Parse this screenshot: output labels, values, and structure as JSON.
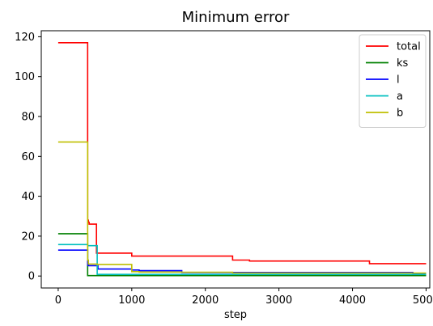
{
  "chart_data": {
    "type": "line",
    "title": "Minimum error",
    "xlabel": "step",
    "ylabel": "",
    "xlim": [
      -230,
      5050
    ],
    "ylim": [
      -6,
      123
    ],
    "xticks": [
      0,
      1000,
      2000,
      3000,
      4000,
      5000
    ],
    "yticks": [
      0,
      20,
      40,
      60,
      80,
      100,
      120
    ],
    "grid": false,
    "legend_position": "top-right",
    "step_style": "post",
    "series": [
      {
        "name": "total",
        "color": "#ff0000",
        "x": [
          0,
          400,
          410,
          420,
          430,
          520,
          1000,
          2370,
          2600,
          4230,
          5000
        ],
        "y": [
          117,
          28,
          27,
          26,
          26,
          11.5,
          10,
          8,
          7.5,
          6.2,
          6.2
        ]
      },
      {
        "name": "ks",
        "color": "#008000",
        "x": [
          0,
          400,
          5000
        ],
        "y": [
          21.2,
          0.2,
          0.2
        ]
      },
      {
        "name": "l",
        "color": "#0000ff",
        "x": [
          0,
          400,
          410,
          540,
          1000,
          1100,
          1680,
          4820,
          5000
        ],
        "y": [
          13,
          5.5,
          5.2,
          3.5,
          3.0,
          2.7,
          1.8,
          1.2,
          1.2
        ]
      },
      {
        "name": "a",
        "color": "#00bfbf",
        "x": [
          0,
          400,
          530,
          5000
        ],
        "y": [
          15.8,
          15.2,
          0.8,
          0.8
        ]
      },
      {
        "name": "b",
        "color": "#bfbf00",
        "x": [
          0,
          400,
          410,
          530,
          1000,
          1100,
          1680,
          2370,
          5000
        ],
        "y": [
          67.2,
          8.0,
          6.0,
          5.8,
          2.2,
          2.0,
          1.9,
          1.5,
          1.5
        ]
      }
    ]
  }
}
